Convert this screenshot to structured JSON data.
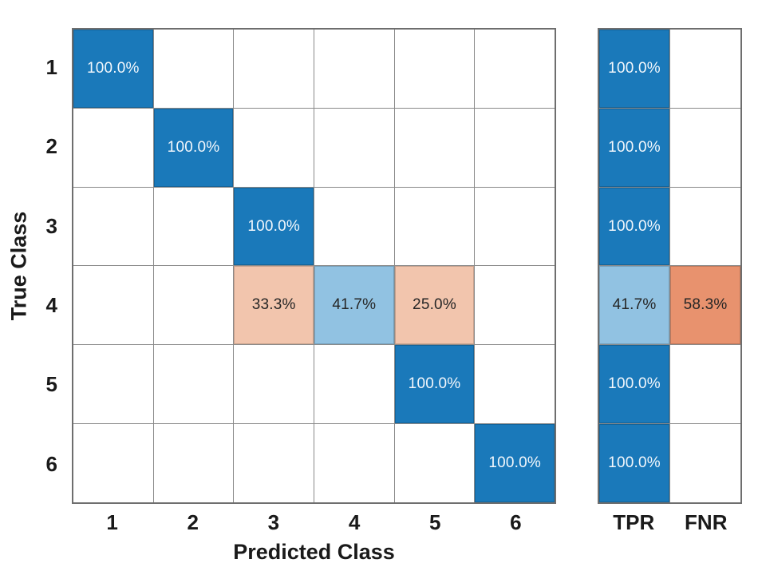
{
  "chart_data": {
    "type": "heatmap",
    "title": "",
    "xlabel": "Predicted Class",
    "ylabel": "True Class",
    "row_labels": [
      "1",
      "2",
      "3",
      "4",
      "5",
      "6"
    ],
    "col_labels": [
      "1",
      "2",
      "3",
      "4",
      "5",
      "6"
    ],
    "summary_labels": [
      "TPR",
      "FNR"
    ],
    "values_pct": [
      [
        100.0,
        0,
        0,
        0,
        0,
        0
      ],
      [
        0,
        100.0,
        0,
        0,
        0,
        0
      ],
      [
        0,
        0,
        100.0,
        0,
        0,
        0
      ],
      [
        0,
        0,
        33.3,
        41.7,
        25.0,
        0
      ],
      [
        0,
        0,
        0,
        0,
        100.0,
        0
      ],
      [
        0,
        0,
        0,
        0,
        0,
        100.0
      ]
    ],
    "tpr_pct": [
      100.0,
      100.0,
      100.0,
      41.7,
      100.0,
      100.0
    ],
    "fnr_pct": [
      0,
      0,
      0,
      58.3,
      0,
      0
    ],
    "matrix_cells": [
      [
        {
          "text": "100.0%",
          "color": "diag"
        },
        null,
        null,
        null,
        null,
        null
      ],
      [
        null,
        {
          "text": "100.0%",
          "color": "diag"
        },
        null,
        null,
        null,
        null
      ],
      [
        null,
        null,
        {
          "text": "100.0%",
          "color": "diag"
        },
        null,
        null,
        null
      ],
      [
        null,
        null,
        {
          "text": "33.3%",
          "color": "light_orange"
        },
        {
          "text": "41.7%",
          "color": "light_blue"
        },
        {
          "text": "25.0%",
          "color": "light_orange"
        },
        null
      ],
      [
        null,
        null,
        null,
        null,
        {
          "text": "100.0%",
          "color": "diag"
        },
        null
      ],
      [
        null,
        null,
        null,
        null,
        null,
        {
          "text": "100.0%",
          "color": "diag"
        }
      ]
    ],
    "summary_cells": [
      [
        {
          "text": "100.0%",
          "color": "diag"
        },
        null
      ],
      [
        {
          "text": "100.0%",
          "color": "diag"
        },
        null
      ],
      [
        {
          "text": "100.0%",
          "color": "diag"
        },
        null
      ],
      [
        {
          "text": "41.7%",
          "color": "light_blue"
        },
        {
          "text": "58.3%",
          "color": "orange"
        }
      ],
      [
        {
          "text": "100.0%",
          "color": "diag"
        },
        null
      ],
      [
        {
          "text": "100.0%",
          "color": "diag"
        },
        null
      ]
    ],
    "colors": {
      "diag": "#1a79ba",
      "light_blue": "#91c2e2",
      "light_orange": "#f2c5ad",
      "orange": "#e8926e",
      "empty": "#ffffff",
      "gridline": "#8a8a8a",
      "text_on_dark": "#f2f7fc",
      "text_on_light": "#262626"
    },
    "legend_position": "none",
    "grid": true
  }
}
